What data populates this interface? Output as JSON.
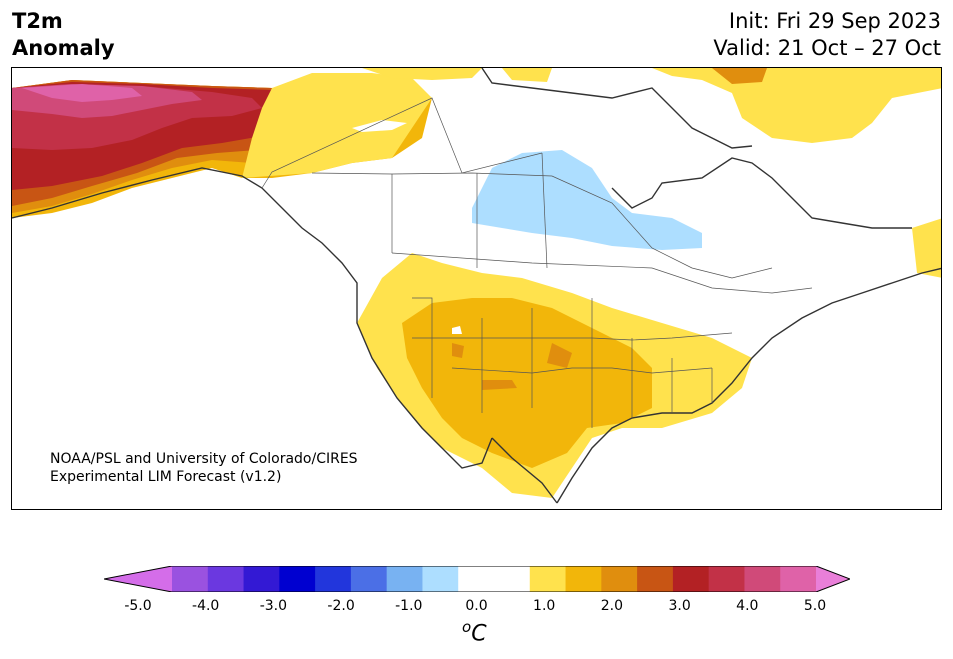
{
  "title": {
    "left_line1": "T2m",
    "left_line2": "Anomaly",
    "init": "Init: Fri 29 Sep 2023",
    "valid": "Valid: 21 Oct – 27 Oct"
  },
  "credit": {
    "line1": "NOAA/PSL and University of Colorado/CIRES",
    "line2": "Experimental LIM Forecast (v1.2)"
  },
  "colorbar": {
    "unit_base": "C",
    "unit_super": "o",
    "tick_labels": [
      "-5.0",
      "-4.0",
      "-3.0",
      "-2.0",
      "-1.0",
      "0.0",
      "1.0",
      "2.0",
      "3.0",
      "4.0",
      "5.0"
    ],
    "colors": [
      "#d46de9",
      "#9a52e0",
      "#6b38e0",
      "#3319d4",
      "#0000d0",
      "#2236dc",
      "#4b6fe6",
      "#78b2f2",
      "#addeff",
      "#ffffff",
      "#ffffff",
      "#ffe24d",
      "#f2b60a",
      "#e08e0e",
      "#c85514",
      "#b32124",
      "#c23147",
      "#d04a79",
      "#df62a8",
      "#e97fd9"
    ]
  },
  "regions": {
    "alaska": "strong warm anomaly (+2.5 to +4.0)",
    "southwest_us": "warm anomaly (+0.5 to +2.5)",
    "central_canada": "cool anomaly (-0.5 to -1.0)",
    "arctic_archipelago": "warm anomaly (+0.5 to +1.5)"
  }
}
